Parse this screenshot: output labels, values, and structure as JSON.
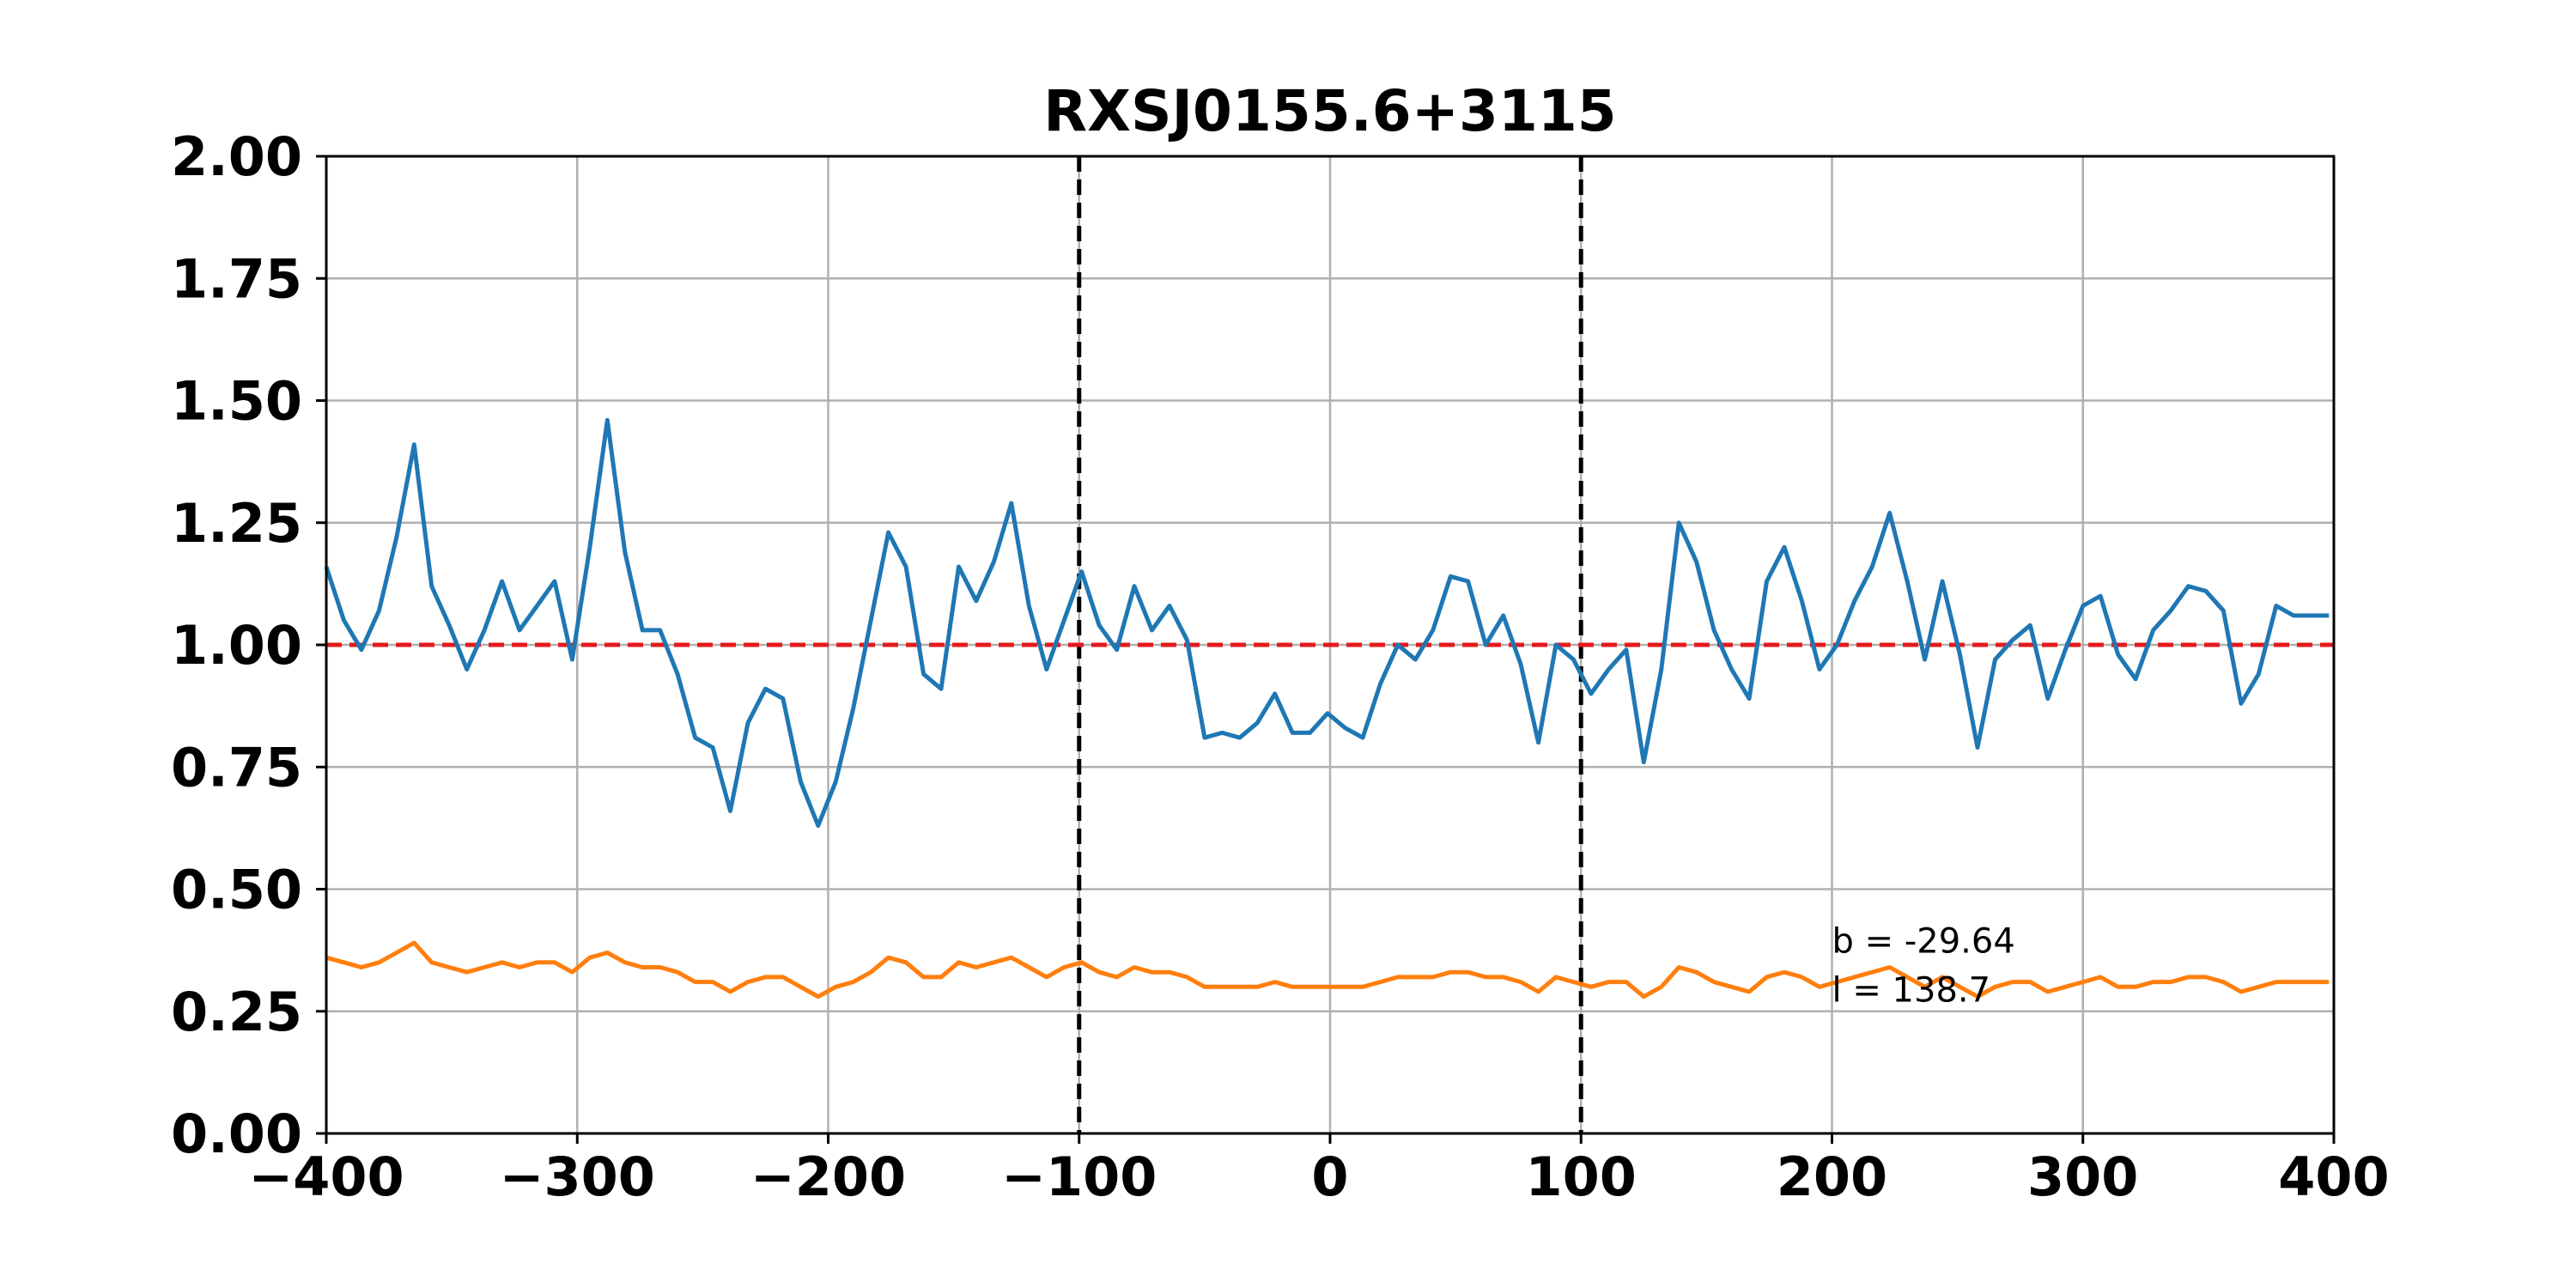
{
  "chart_data": {
    "type": "line",
    "title": "RXSJ0155.6+3115",
    "xlabel": "",
    "ylabel": "",
    "xlim": [
      -400,
      400
    ],
    "ylim": [
      0,
      2
    ],
    "grid": true,
    "x_ticks": [
      "−400",
      "−300",
      "−200",
      "−100",
      "0",
      "100",
      "200",
      "300",
      "400"
    ],
    "x_tick_values": [
      -400,
      -300,
      -200,
      -100,
      0,
      100,
      200,
      300,
      400
    ],
    "y_ticks": [
      "0.00",
      "0.25",
      "0.50",
      "0.75",
      "1.00",
      "1.25",
      "1.50",
      "1.75",
      "2.00"
    ],
    "y_tick_values": [
      0,
      0.25,
      0.5,
      0.75,
      1.0,
      1.25,
      1.5,
      1.75,
      2.0
    ],
    "hlines": [
      {
        "y": 1.0,
        "color": "#e41a1c",
        "style": "dashed"
      }
    ],
    "vlines": [
      {
        "x": -100,
        "color": "#000000",
        "style": "dashed"
      },
      {
        "x": 100,
        "color": "#000000",
        "style": "dashed"
      }
    ],
    "annotations": [
      {
        "text": "b = -29.64",
        "x": 200,
        "y": 0.37
      },
      {
        "text": "l = 138.7",
        "x": 200,
        "y": 0.27
      }
    ],
    "series": [
      {
        "color": "#1f77b4",
        "x": [
          -400,
          -393,
          -386,
          -379,
          -372,
          -365,
          -358,
          -351,
          -344,
          -337,
          -330,
          -323,
          -316,
          -309,
          -302,
          -295,
          -288,
          -281,
          -274,
          -267,
          -260,
          -253,
          -246,
          -239,
          -232,
          -225,
          -218,
          -211,
          -204,
          -197,
          -190,
          -183,
          -176,
          -169,
          -162,
          -155,
          -148,
          -141,
          -134,
          -127,
          -120,
          -113,
          -106,
          -99,
          -92,
          -85,
          -78,
          -71,
          -64,
          -57,
          -50,
          -43,
          -36,
          -29,
          -22,
          -15,
          -8,
          -1,
          6,
          13,
          20,
          27,
          34,
          41,
          48,
          55,
          62,
          69,
          76,
          83,
          90,
          97,
          104,
          111,
          118,
          125,
          132,
          139,
          146,
          153,
          160,
          167,
          174,
          181,
          188,
          195,
          202,
          209,
          216,
          223,
          230,
          237,
          244,
          251,
          258,
          265,
          272,
          279,
          286,
          293,
          300,
          307,
          314,
          321,
          328,
          335,
          342,
          349,
          356,
          363,
          370,
          377,
          384,
          391,
          398
        ],
        "values": [
          1.16,
          1.05,
          0.99,
          1.07,
          1.22,
          1.41,
          1.12,
          1.04,
          0.95,
          1.03,
          1.13,
          1.03,
          1.08,
          1.13,
          0.97,
          1.2,
          1.46,
          1.19,
          1.03,
          1.03,
          0.94,
          0.81,
          0.79,
          0.66,
          0.84,
          0.91,
          0.89,
          0.72,
          0.63,
          0.72,
          0.87,
          1.05,
          1.23,
          1.16,
          0.94,
          0.91,
          1.16,
          1.09,
          1.17,
          1.29,
          1.08,
          0.95,
          1.05,
          1.15,
          1.04,
          0.99,
          1.12,
          1.03,
          1.08,
          1.01,
          0.81,
          0.82,
          0.81,
          0.84,
          0.9,
          0.82,
          0.82,
          0.86,
          0.83,
          0.81,
          0.92,
          1.0,
          0.97,
          1.03,
          1.14,
          1.13,
          1.0,
          1.06,
          0.96,
          0.8,
          1.0,
          0.97,
          0.9,
          0.95,
          0.99,
          0.76,
          0.95,
          1.25,
          1.17,
          1.03,
          0.95,
          0.89,
          1.13,
          1.2,
          1.09,
          0.95,
          1.0,
          1.09,
          1.16,
          1.27,
          1.13,
          0.97,
          1.13,
          0.98,
          0.79,
          0.97,
          1.01,
          1.04,
          0.89,
          0.99,
          1.08,
          1.1,
          0.98,
          0.93,
          1.03,
          1.07,
          1.12,
          1.11,
          1.07,
          0.88,
          0.94,
          1.08,
          1.06,
          1.06,
          1.06
        ]
      },
      {
        "color": "#ff7f0e",
        "x": [
          -400,
          -393,
          -386,
          -379,
          -372,
          -365,
          -358,
          -351,
          -344,
          -337,
          -330,
          -323,
          -316,
          -309,
          -302,
          -295,
          -288,
          -281,
          -274,
          -267,
          -260,
          -253,
          -246,
          -239,
          -232,
          -225,
          -218,
          -211,
          -204,
          -197,
          -190,
          -183,
          -176,
          -169,
          -162,
          -155,
          -148,
          -141,
          -134,
          -127,
          -120,
          -113,
          -106,
          -99,
          -92,
          -85,
          -78,
          -71,
          -64,
          -57,
          -50,
          -43,
          -36,
          -29,
          -22,
          -15,
          -8,
          -1,
          6,
          13,
          20,
          27,
          34,
          41,
          48,
          55,
          62,
          69,
          76,
          83,
          90,
          97,
          104,
          111,
          118,
          125,
          132,
          139,
          146,
          153,
          160,
          167,
          174,
          181,
          188,
          195,
          202,
          209,
          216,
          223,
          230,
          237,
          244,
          251,
          258,
          265,
          272,
          279,
          286,
          293,
          300,
          307,
          314,
          321,
          328,
          335,
          342,
          349,
          356,
          363,
          370,
          377,
          384,
          391,
          398
        ],
        "values": [
          0.36,
          0.35,
          0.34,
          0.35,
          0.37,
          0.39,
          0.35,
          0.34,
          0.33,
          0.34,
          0.35,
          0.34,
          0.35,
          0.35,
          0.33,
          0.36,
          0.37,
          0.35,
          0.34,
          0.34,
          0.33,
          0.31,
          0.31,
          0.29,
          0.31,
          0.32,
          0.32,
          0.3,
          0.28,
          0.3,
          0.31,
          0.33,
          0.36,
          0.35,
          0.32,
          0.32,
          0.35,
          0.34,
          0.35,
          0.36,
          0.34,
          0.32,
          0.34,
          0.35,
          0.33,
          0.32,
          0.34,
          0.33,
          0.33,
          0.32,
          0.3,
          0.3,
          0.3,
          0.3,
          0.31,
          0.3,
          0.3,
          0.3,
          0.3,
          0.3,
          0.31,
          0.32,
          0.32,
          0.32,
          0.33,
          0.33,
          0.32,
          0.32,
          0.31,
          0.29,
          0.32,
          0.31,
          0.3,
          0.31,
          0.31,
          0.28,
          0.3,
          0.34,
          0.33,
          0.31,
          0.3,
          0.29,
          0.32,
          0.33,
          0.32,
          0.3,
          0.31,
          0.32,
          0.33,
          0.34,
          0.32,
          0.3,
          0.32,
          0.3,
          0.28,
          0.3,
          0.31,
          0.31,
          0.29,
          0.3,
          0.31,
          0.32,
          0.3,
          0.3,
          0.31,
          0.31,
          0.32,
          0.32,
          0.31,
          0.29,
          0.3,
          0.31,
          0.31,
          0.31,
          0.31
        ]
      }
    ]
  }
}
